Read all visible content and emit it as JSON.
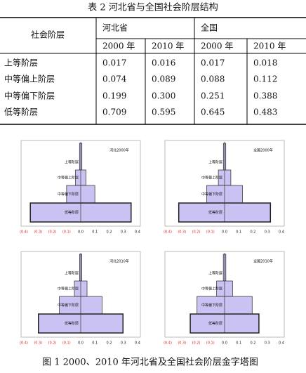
{
  "table": {
    "title": "表 2 河北省与全国社会阶层结构",
    "row_header": "社会阶层",
    "groups": [
      "河北省",
      "全国"
    ],
    "years": [
      "2000 年",
      "2010 年",
      "2000 年",
      "2010 年"
    ],
    "rows": [
      [
        "上等阶层",
        "0.017",
        "0.016",
        "0.017",
        "0.018"
      ],
      [
        "中等偏上阶层",
        "0.074",
        "0.089",
        "0.088",
        "0.112"
      ],
      [
        "中等偏下阶层",
        "0.199",
        "0.300",
        "0.251",
        "0.388"
      ],
      [
        "低等阶层",
        "0.709",
        "0.595",
        "0.645",
        "0.483"
      ]
    ]
  },
  "chart_data": [
    {
      "type": "pyramid",
      "title": "河北2000年",
      "categories": [
        "上等阶层",
        "中等偏上阶层",
        "中等偏下阶层",
        "低等阶层"
      ],
      "values": [
        0.017,
        0.074,
        0.199,
        0.709
      ],
      "color": "#c9c2f2",
      "xlim": [
        -0.4,
        0.4
      ],
      "xticks": [
        {
          "value": -0.4,
          "label": "(0.4)"
        },
        {
          "value": -0.3,
          "label": "(0.3)"
        },
        {
          "value": -0.2,
          "label": "(0.2)"
        },
        {
          "value": -0.1,
          "label": "(0.1)"
        },
        {
          "value": 0,
          "label": "0.0"
        },
        0.1,
        0.2,
        0.3,
        0.4
      ]
    },
    {
      "type": "pyramid",
      "title": "全国2000年",
      "categories": [
        "上等阶层",
        "中等偏上阶层",
        "中等偏下阶层",
        "低等阶层"
      ],
      "values": [
        0.017,
        0.088,
        0.251,
        0.645
      ],
      "color": "#c9c2f2",
      "xlim": [
        -0.4,
        0.4
      ],
      "xticks": [
        {
          "value": -0.4,
          "label": "(0.4)"
        },
        {
          "value": -0.3,
          "label": "(0.3)"
        },
        {
          "value": -0.2,
          "label": "(0.2)"
        },
        {
          "value": -0.1,
          "label": "(0.1)"
        },
        {
          "value": 0,
          "label": "0.0"
        },
        0.1,
        0.2,
        0.3,
        0.4
      ]
    },
    {
      "type": "pyramid",
      "title": "河北2010年",
      "categories": [
        "上等阶层",
        "中等偏上阶层",
        "中等偏下阶层",
        "低等阶层"
      ],
      "values": [
        0.016,
        0.089,
        0.3,
        0.595
      ],
      "color": "#c9c2f2",
      "xlim": [
        -0.4,
        0.4
      ],
      "xticks": [
        {
          "value": -0.4,
          "label": "(0.4)"
        },
        {
          "value": -0.3,
          "label": "(0.3)"
        },
        {
          "value": -0.2,
          "label": "(0.2)"
        },
        {
          "value": -0.1,
          "label": "(0.1)"
        },
        {
          "value": 0,
          "label": "0.0"
        },
        0.1,
        0.2,
        0.3,
        0.4
      ]
    },
    {
      "type": "pyramid",
      "title": "全国2010年",
      "categories": [
        "上等阶层",
        "中等偏上阶层",
        "中等偏下阶层",
        "低等阶层"
      ],
      "values": [
        0.018,
        0.112,
        0.388,
        0.483
      ],
      "color": "#c9c2f2",
      "xlim": [
        -0.4,
        0.4
      ],
      "xticks": [
        {
          "value": -0.4,
          "label": "(0.4)"
        },
        {
          "value": -0.3,
          "label": "(0.3)"
        },
        {
          "value": -0.2,
          "label": "(0.2)"
        },
        {
          "value": -0.1,
          "label": "(0.1)"
        },
        {
          "value": 0,
          "label": "0.0"
        },
        0.1,
        0.2,
        0.3,
        0.4
      ]
    }
  ],
  "figure_caption": "图 1 2000、2010 年河北省及全国社会阶层金字塔图"
}
